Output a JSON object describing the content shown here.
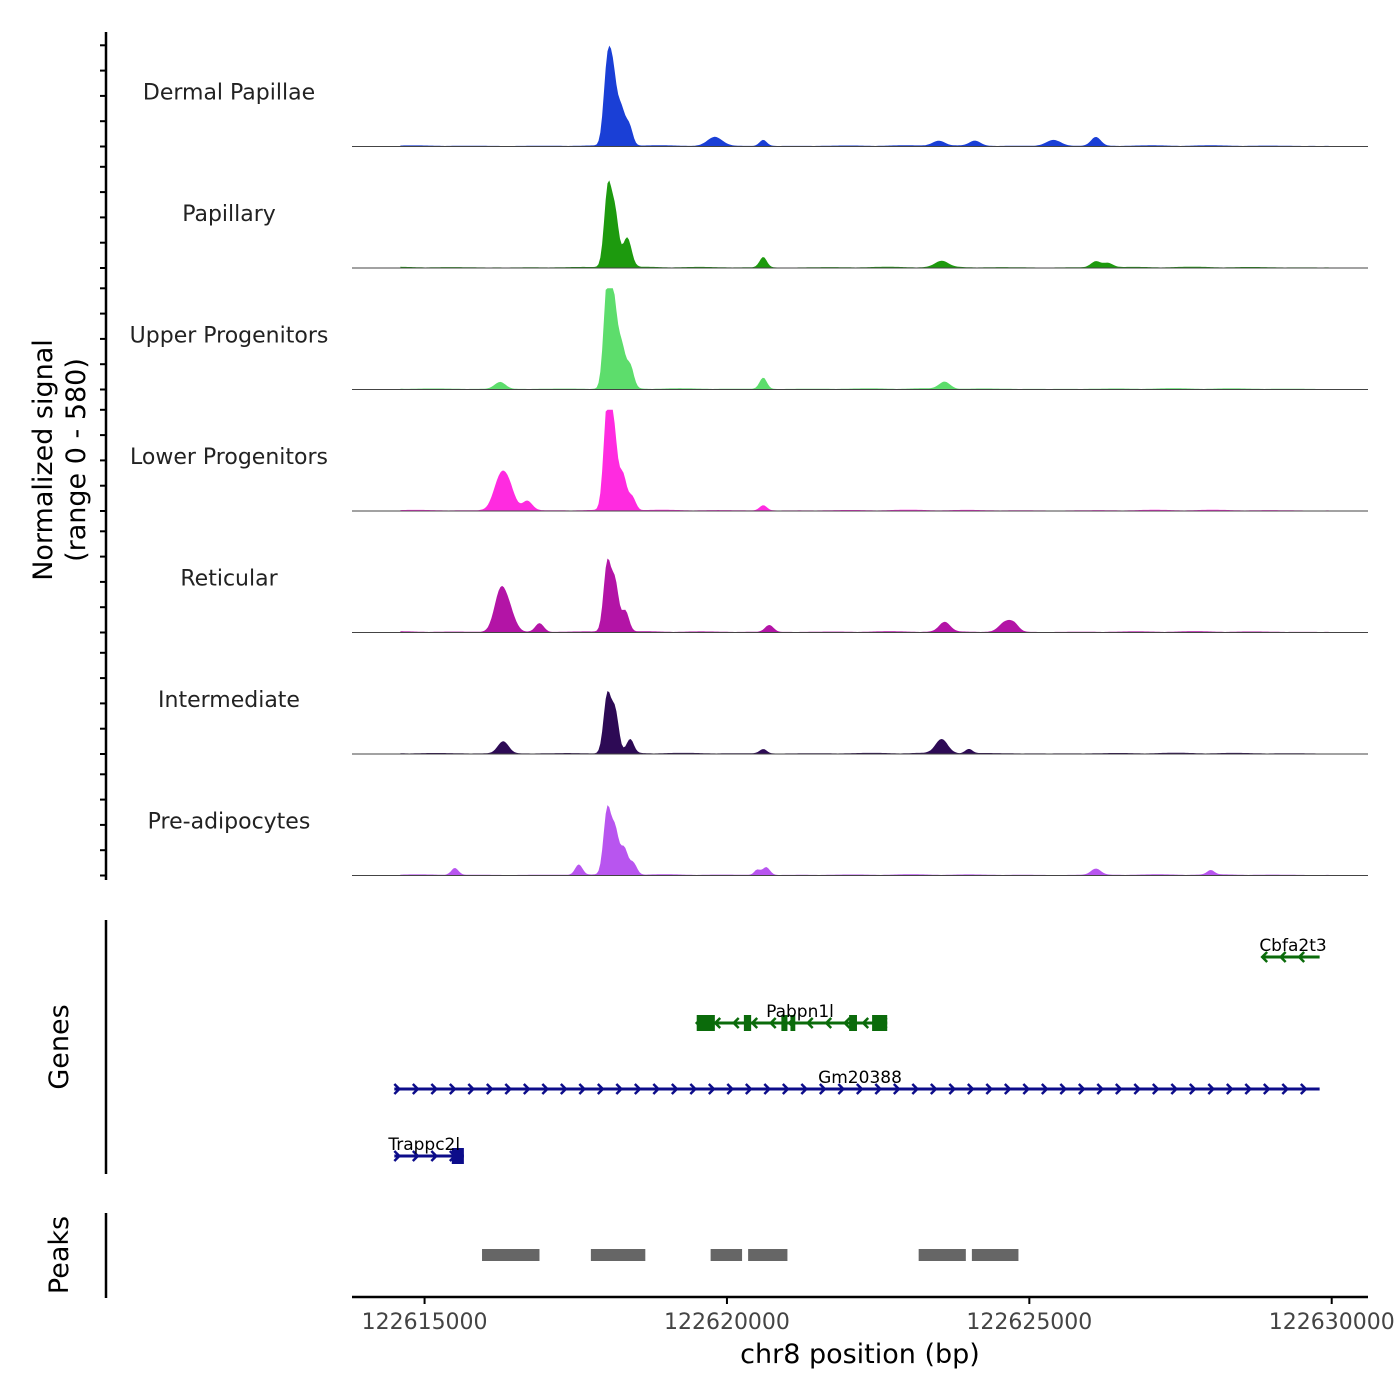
{
  "chart_data": {
    "type": "area",
    "subtype": "genome-coverage-track",
    "ylabel_line1": "Normalized signal",
    "ylabel_line2": "(range 0 - 580)",
    "ylim": [
      0,
      580
    ],
    "xlabel": "chr8 position (bp)",
    "xlim": [
      122613800,
      122630600
    ],
    "xticks": [
      122615000,
      122620000,
      122625000,
      122630000
    ],
    "xtick_labels": [
      "122615000",
      "122620000",
      "122625000",
      "122630000"
    ],
    "series": [
      {
        "name": "Dermal Papillae",
        "color": "#1a3fd6",
        "peaks": [
          [
            122618020,
            440,
            60
          ],
          [
            122618120,
            360,
            60
          ],
          [
            122618250,
            200,
            60
          ],
          [
            122618380,
            120,
            60
          ],
          [
            122619800,
            50,
            120
          ],
          [
            122620600,
            35,
            60
          ],
          [
            122623500,
            30,
            100
          ],
          [
            122624100,
            28,
            90
          ],
          [
            122625400,
            35,
            120
          ],
          [
            122626100,
            50,
            80
          ]
        ]
      },
      {
        "name": "Papillary",
        "color": "#1d9a0e",
        "peaks": [
          [
            122618030,
            450,
            60
          ],
          [
            122618150,
            300,
            60
          ],
          [
            122618350,
            170,
            70
          ],
          [
            122620600,
            60,
            60
          ],
          [
            122623550,
            35,
            110
          ],
          [
            122626100,
            35,
            80
          ],
          [
            122626300,
            25,
            80
          ]
        ]
      },
      {
        "name": "Upper Progenitors",
        "color": "#5ddd6c",
        "peaks": [
          [
            122618020,
            580,
            60
          ],
          [
            122618130,
            440,
            60
          ],
          [
            122618260,
            230,
            60
          ],
          [
            122618400,
            130,
            60
          ],
          [
            122616250,
            40,
            90
          ],
          [
            122620600,
            65,
            60
          ],
          [
            122623600,
            40,
            90
          ]
        ]
      },
      {
        "name": "Lower Progenitors",
        "color": "#ff2be0",
        "peaks": [
          [
            122616250,
            180,
            110
          ],
          [
            122616400,
            110,
            100
          ],
          [
            122616700,
            55,
            80
          ],
          [
            122618020,
            580,
            60
          ],
          [
            122618130,
            420,
            60
          ],
          [
            122618280,
            200,
            60
          ],
          [
            122618430,
            80,
            60
          ],
          [
            122620600,
            30,
            60
          ]
        ]
      },
      {
        "name": "Reticular",
        "color": "#b314a6",
        "peaks": [
          [
            122616250,
            220,
            100
          ],
          [
            122616400,
            110,
            100
          ],
          [
            122616900,
            50,
            70
          ],
          [
            122618020,
            390,
            60
          ],
          [
            122618150,
            280,
            60
          ],
          [
            122618320,
            120,
            60
          ],
          [
            122620700,
            40,
            70
          ],
          [
            122623600,
            55,
            90
          ],
          [
            122624600,
            55,
            100
          ],
          [
            122624750,
            40,
            80
          ]
        ]
      },
      {
        "name": "Intermediate",
        "color": "#2d0a55",
        "peaks": [
          [
            122616300,
            70,
            90
          ],
          [
            122618020,
            330,
            60
          ],
          [
            122618150,
            240,
            60
          ],
          [
            122618400,
            80,
            60
          ],
          [
            122620600,
            25,
            60
          ],
          [
            122623550,
            80,
            100
          ],
          [
            122624000,
            25,
            60
          ]
        ]
      },
      {
        "name": "Pre-adipocytes",
        "color": "#b855ef",
        "peaks": [
          [
            122615500,
            40,
            60
          ],
          [
            122617550,
            60,
            60
          ],
          [
            122618020,
            370,
            60
          ],
          [
            122618150,
            250,
            60
          ],
          [
            122618300,
            150,
            60
          ],
          [
            122618450,
            70,
            60
          ],
          [
            122620500,
            30,
            50
          ],
          [
            122620650,
            45,
            60
          ],
          [
            122626100,
            35,
            80
          ],
          [
            122628000,
            25,
            60
          ]
        ]
      }
    ],
    "genes_label": "Genes",
    "genes": [
      {
        "name": "Cbfa2t3",
        "strand": "-",
        "start": 122628850,
        "end": 122629800,
        "row": 0,
        "color": "#0b6b0b",
        "exons": []
      },
      {
        "name": "Pabpn1l",
        "strand": "-",
        "start": 122619500,
        "end": 122622650,
        "row": 1,
        "color": "#0b6b0b",
        "exons": [
          [
            122619500,
            122619800
          ],
          [
            122620280,
            122620400
          ],
          [
            122620900,
            122621000
          ],
          [
            122621050,
            122621130
          ],
          [
            122622020,
            122622150
          ],
          [
            122622400,
            122622650
          ]
        ]
      },
      {
        "name": "Gm20388",
        "strand": "+",
        "start": 122614500,
        "end": 122629800,
        "row": 2,
        "color": "#0c0c8a",
        "exons": []
      },
      {
        "name": "Trappc2l",
        "strand": "+",
        "start": 122614500,
        "end": 122615650,
        "row": 3,
        "color": "#0c0c8a",
        "exons": [
          [
            122615450,
            122615650
          ]
        ]
      }
    ],
    "peaks_label": "Peaks",
    "peaks": [
      [
        122615950,
        122616900
      ],
      [
        122617750,
        122618650
      ],
      [
        122619730,
        122620250
      ],
      [
        122620350,
        122621000
      ],
      [
        122623170,
        122623950
      ],
      [
        122624050,
        122624820
      ]
    ]
  }
}
